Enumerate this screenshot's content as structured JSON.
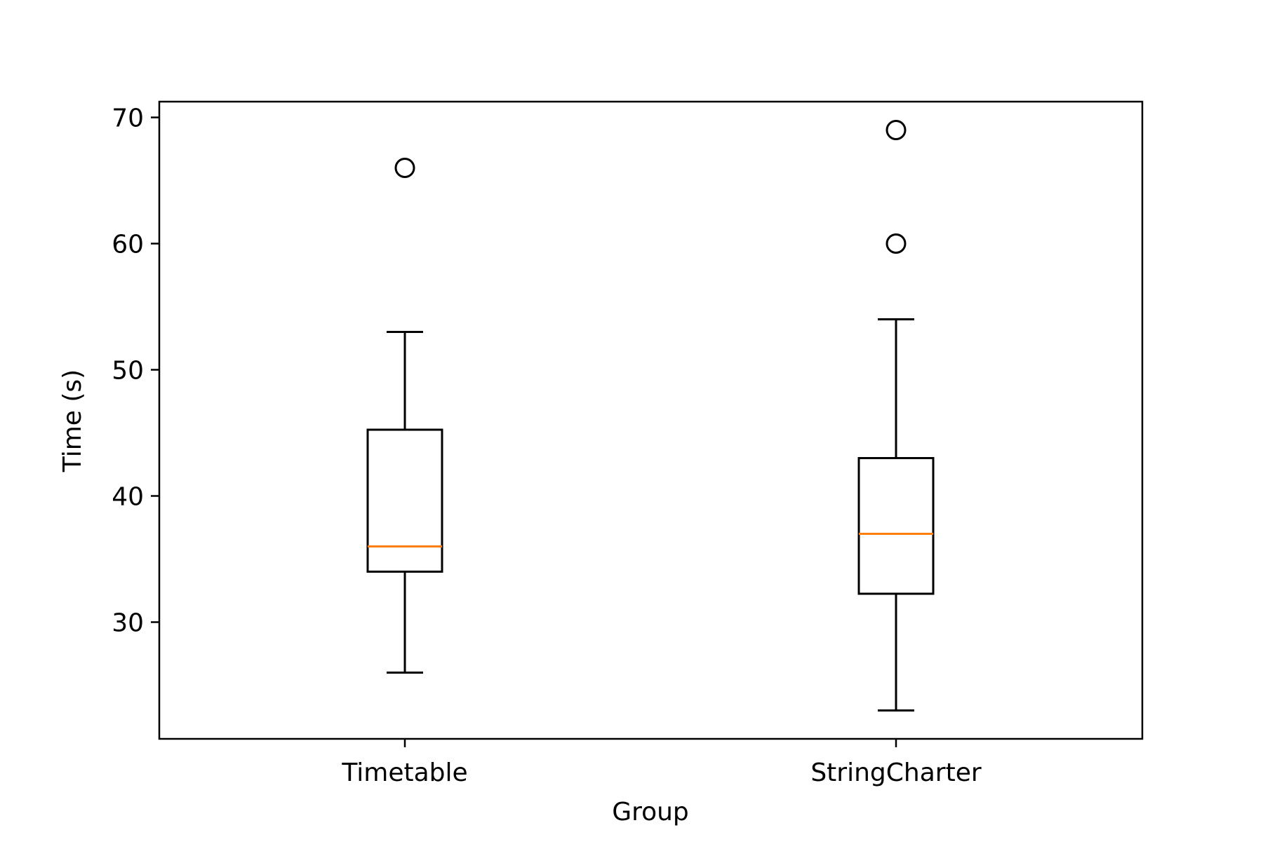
{
  "chart_data": {
    "type": "box",
    "title": "",
    "xlabel": "Group",
    "ylabel": "Time (s)",
    "ylim": [
      20.75,
      71.25
    ],
    "yticks": [
      30,
      40,
      50,
      60,
      70
    ],
    "grid": false,
    "legend": null,
    "categories": [
      "Timetable",
      "StringCharter"
    ],
    "series": [
      {
        "category": "Timetable",
        "whisker_low": 26,
        "q1": 34,
        "median": 36,
        "q3": 45.25,
        "whisker_high": 53,
        "outliers": [
          66
        ]
      },
      {
        "category": "StringCharter",
        "whisker_low": 23,
        "q1": 32.25,
        "median": 37,
        "q3": 43,
        "whisker_high": 54,
        "outliers": [
          69,
          60
        ]
      }
    ],
    "colors": {
      "box": "#000000",
      "median": "#ff7f0e",
      "whisker": "#000000",
      "outlier": "#000000",
      "axes": "#000000"
    }
  }
}
